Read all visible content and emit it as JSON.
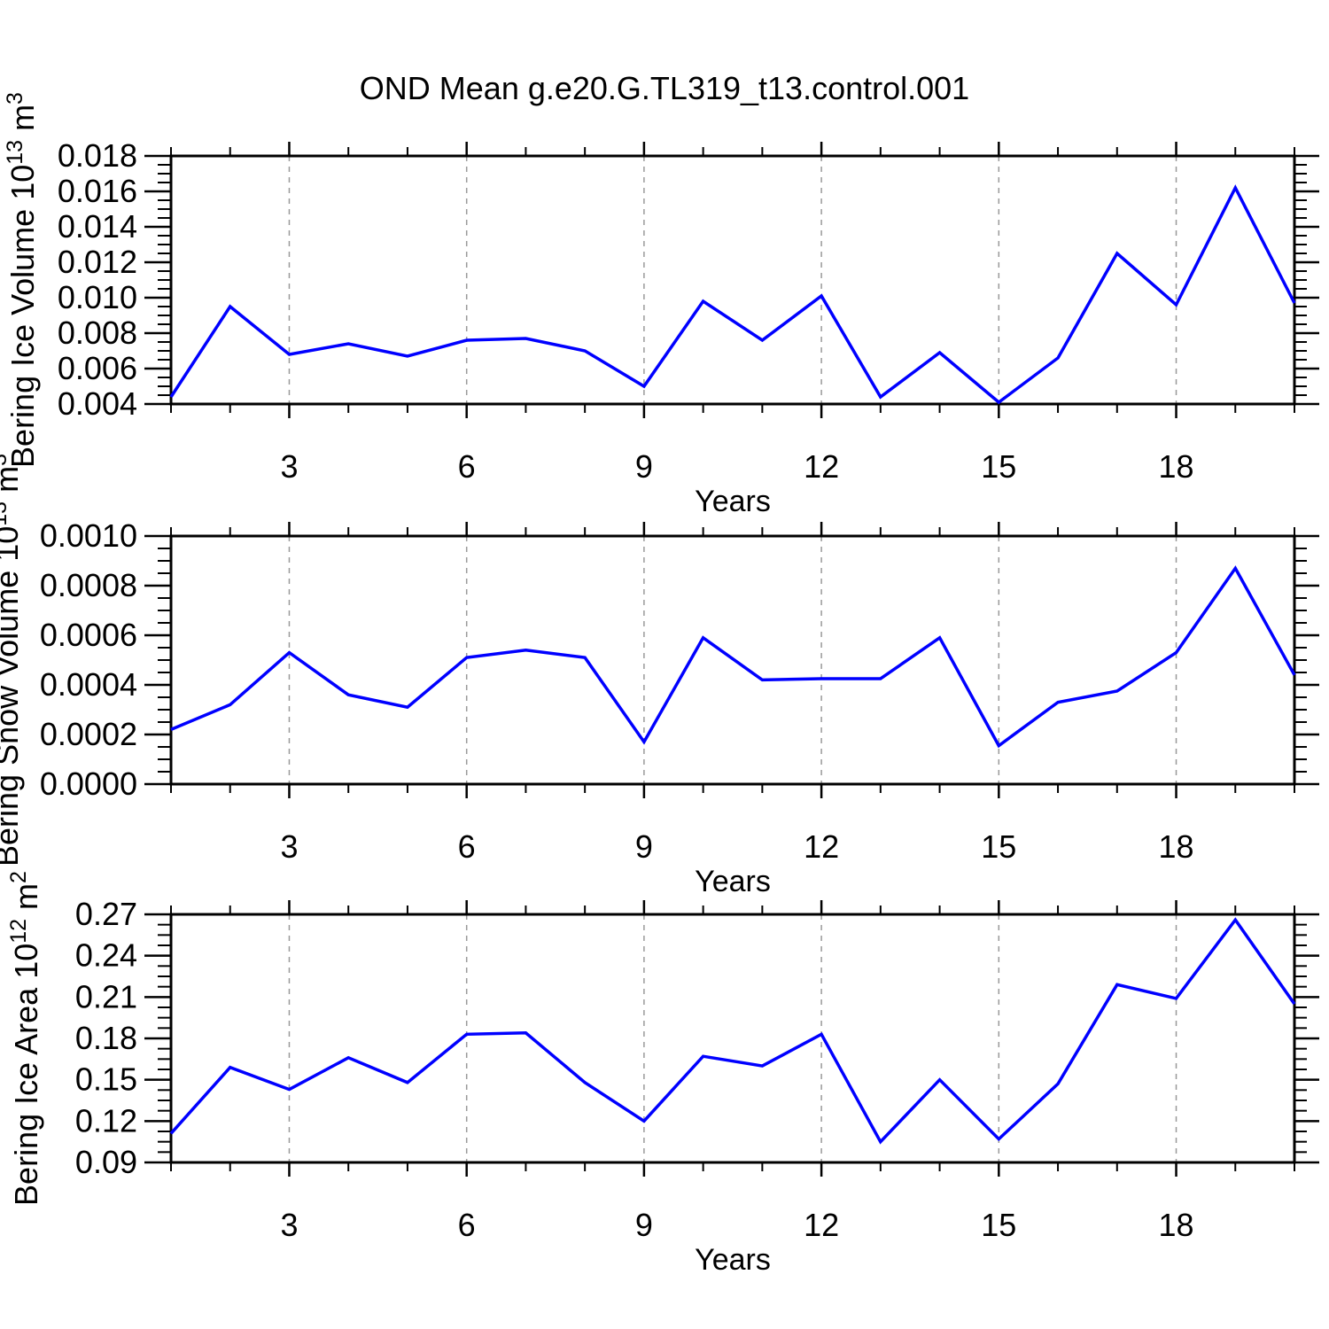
{
  "title": "OND Mean g.e20.G.TL319_t13.control.001",
  "colors": {
    "line": "#0000ff",
    "grid": "#999999",
    "axis": "#000000",
    "background": "#ffffff"
  },
  "chart_data": [
    {
      "type": "line",
      "name": "bering-ice-volume",
      "ylabel": "Bering Ice Volume 10^13 m^3",
      "ylabel_parts": [
        {
          "t": "Bering Ice Volume 10"
        },
        {
          "t": "13",
          "sup": true
        },
        {
          "t": " m"
        },
        {
          "t": "3",
          "sup": true
        }
      ],
      "xlabel": "Years",
      "x": [
        1,
        2,
        3,
        4,
        5,
        6,
        7,
        8,
        9,
        10,
        11,
        12,
        13,
        14,
        15,
        16,
        17,
        18,
        19,
        20
      ],
      "values": [
        0.0044,
        0.0095,
        0.0068,
        0.0074,
        0.0067,
        0.0076,
        0.0077,
        0.007,
        0.005,
        0.0098,
        0.0076,
        0.0101,
        0.0044,
        0.0069,
        0.0041,
        0.0066,
        0.0125,
        0.0096,
        0.0162,
        0.0097
      ],
      "xlim": [
        1,
        20
      ],
      "ylim": [
        0.004,
        0.018
      ],
      "ytick_step": 0.002,
      "yminor_step": 0.0005,
      "ytick_labels": [
        "0.004",
        "0.006",
        "0.008",
        "0.010",
        "0.012",
        "0.014",
        "0.016",
        "0.018"
      ],
      "xtick_major": [
        3,
        6,
        9,
        12,
        15,
        18
      ],
      "xminor_step": 1,
      "grid": "vertical dashed at major x ticks",
      "legend": "none"
    },
    {
      "type": "line",
      "name": "bering-snow-volume",
      "ylabel": "Bering Snow Volume 10^13 m^3",
      "ylabel_parts": [
        {
          "t": "Bering Snow Volume 10"
        },
        {
          "t": "13",
          "sup": true
        },
        {
          "t": " m"
        },
        {
          "t": "3",
          "sup": true
        }
      ],
      "xlabel": "Years",
      "x": [
        1,
        2,
        3,
        4,
        5,
        6,
        7,
        8,
        9,
        10,
        11,
        12,
        13,
        14,
        15,
        16,
        17,
        18,
        19,
        20
      ],
      "values": [
        0.00022,
        0.00032,
        0.00053,
        0.00036,
        0.00031,
        0.00051,
        0.00054,
        0.00051,
        0.00017,
        0.00059,
        0.00042,
        0.000425,
        0.000425,
        0.00059,
        0.000155,
        0.00033,
        0.000375,
        0.00053,
        0.00087,
        0.00044
      ],
      "xlim": [
        1,
        20
      ],
      "ylim": [
        0.0,
        0.001
      ],
      "ytick_step": 0.0002,
      "yminor_step": 5e-05,
      "ytick_labels": [
        "0.0000",
        "0.0002",
        "0.0004",
        "0.0006",
        "0.0008",
        "0.0010"
      ],
      "xtick_major": [
        3,
        6,
        9,
        12,
        15,
        18
      ],
      "xminor_step": 1,
      "grid": "vertical dashed at major x ticks",
      "legend": "none"
    },
    {
      "type": "line",
      "name": "bering-ice-area",
      "ylabel": "Bering Ice Area 10^12 m^2",
      "ylabel_parts": [
        {
          "t": "Bering Ice Area 10"
        },
        {
          "t": "12",
          "sup": true
        },
        {
          "t": " m"
        },
        {
          "t": "2",
          "sup": true
        }
      ],
      "xlabel": "Years",
      "x": [
        1,
        2,
        3,
        4,
        5,
        6,
        7,
        8,
        9,
        10,
        11,
        12,
        13,
        14,
        15,
        16,
        17,
        18,
        19,
        20
      ],
      "values": [
        0.111,
        0.159,
        0.143,
        0.166,
        0.148,
        0.183,
        0.184,
        0.148,
        0.12,
        0.167,
        0.16,
        0.183,
        0.105,
        0.15,
        0.107,
        0.147,
        0.219,
        0.209,
        0.266,
        0.205
      ],
      "xlim": [
        1,
        20
      ],
      "ylim": [
        0.09,
        0.27
      ],
      "ytick_step": 0.03,
      "yminor_step": 0.0075,
      "ytick_labels": [
        "0.09",
        "0.12",
        "0.15",
        "0.18",
        "0.21",
        "0.24",
        "0.27"
      ],
      "xtick_major": [
        3,
        6,
        9,
        12,
        15,
        18
      ],
      "xminor_step": 1,
      "grid": "vertical dashed at major x ticks",
      "legend": "none"
    }
  ]
}
